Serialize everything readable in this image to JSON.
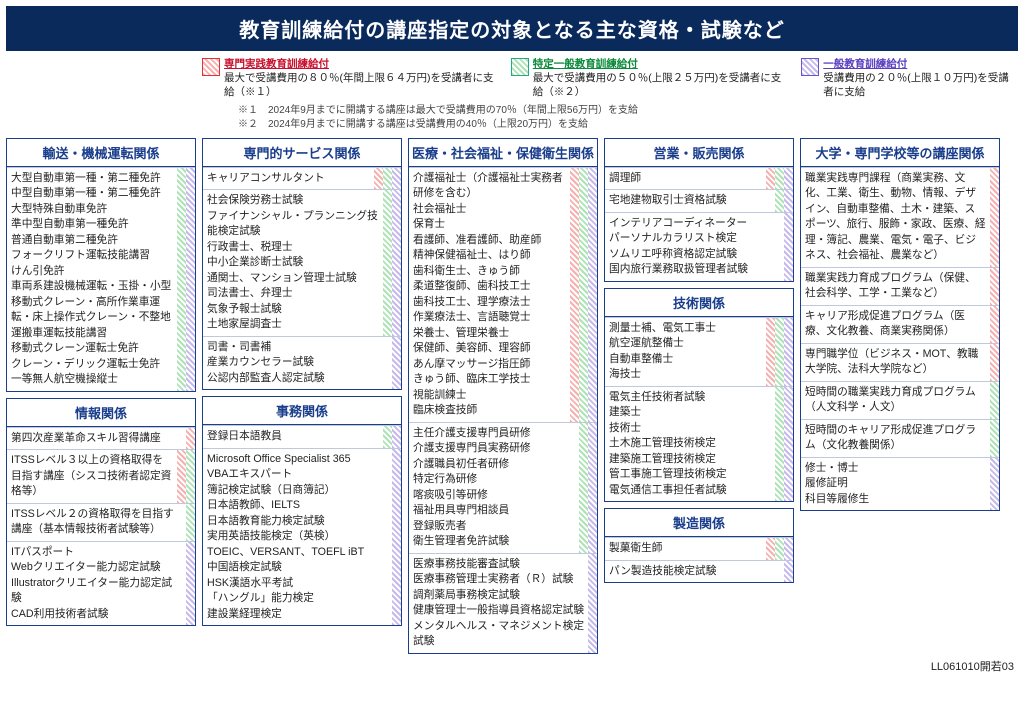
{
  "title": "教育訓練給付の講座指定の対象となる主な資格・試験など",
  "legend": {
    "red": {
      "title": "専門実践教育訓練給付",
      "desc": "最大で受講費用の８０％(年間上限６４万円)を受講者に支給（※１）"
    },
    "green": {
      "title": "特定一般教育訓練給付",
      "desc": "最大で受講費用の５０％(上限２５万円)を受講者に支給（※２）"
    },
    "purple": {
      "title": "一般教育訓練給付",
      "desc": "受講費用の２０％(上限１０万円)を受講者に支給"
    }
  },
  "footnotes": [
    "※１　2024年9月までに開講する講座は最大で受講費用の70％（年間上限56万円）を支給",
    "※２　2024年9月までに開講する講座は受講費用の40％（上限20万円）を支給"
  ],
  "doc_code": "LL061010開若03",
  "panels": {
    "transport": {
      "title": "輸送・機械運転関係",
      "groups": [
        {
          "stripes": [
            "green",
            "purple"
          ],
          "items": [
            "大型自動車第一種・第二種免許",
            "中型自動車第一種・第二種免許",
            "大型特殊自動車免許",
            "準中型自動車第一種免許",
            "普通自動車第二種免許",
            "フォークリフト運転技能講習",
            "けん引免許",
            "車両系建設機械運転・玉掛・小型移動式クレーン・高所作業車運転・床上操作式クレーン・不整地運搬車運転技能講習",
            "移動式クレーン運転士免許",
            "クレーン・デリック運転士免許",
            "一等無人航空機操縦士"
          ]
        }
      ]
    },
    "it": {
      "title": "情報関係",
      "groups": [
        {
          "stripes": [
            "red"
          ],
          "items": [
            "第四次産業革命スキル習得講座"
          ]
        },
        {
          "stripes": [
            "red",
            "green"
          ],
          "items": [
            "ITSSレベル３以上の資格取得を目指す講座（シスコ技術者認定資格等）"
          ]
        },
        {
          "stripes": [
            "green"
          ],
          "items": [
            "ITSSレベル２の資格取得を目指す講座（基本情報技術者試験等）"
          ]
        },
        {
          "stripes": [
            "purple"
          ],
          "items": [
            "ITパスポート",
            "Webクリエイター能力認定試験",
            "Illustratorクリエイター能力認定試験",
            "CAD利用技術者試験"
          ]
        }
      ]
    },
    "prof_service": {
      "title": "専門的サービス関係",
      "groups": [
        {
          "stripes": [
            "red",
            "green",
            "purple"
          ],
          "items": [
            "キャリアコンサルタント"
          ]
        },
        {
          "stripes": [
            "green",
            "purple"
          ],
          "items": [
            "社会保険労務士試験",
            "ファイナンシャル・プランニング技能検定試験",
            "行政書士、税理士",
            "中小企業診断士試験",
            "通関士、マンション管理士試験",
            "司法書士、弁理士",
            "気象予報士試験",
            "土地家屋調査士"
          ]
        },
        {
          "stripes": [
            "purple"
          ],
          "items": [
            "司書・司書補",
            "産業カウンセラー試験",
            "公認内部監査人認定試験"
          ]
        }
      ]
    },
    "office": {
      "title": "事務関係",
      "groups": [
        {
          "stripes": [
            "green",
            "purple"
          ],
          "items": [
            "登録日本語教員"
          ]
        },
        {
          "stripes": [
            "purple"
          ],
          "items": [
            "Microsoft Office Specialist 365",
            "VBAエキスパート",
            "簿記検定試験（日商簿記）",
            "日本語教師、IELTS",
            "日本語教育能力検定試験",
            "実用英語技能検定（英検）",
            "TOEIC、VERSANT、TOEFL iBT",
            "中国語検定試験",
            "HSK漢語水平考試",
            "「ハングル」能力検定",
            "建設業経理検定"
          ]
        }
      ]
    },
    "medical": {
      "title": "医療・社会福祉・保健衛生関係",
      "groups": [
        {
          "stripes": [
            "red",
            "green",
            "purple"
          ],
          "items": [
            "介護福祉士（介護福祉士実務者研修を含む）",
            "社会福祉士",
            "保育士",
            "看護師、准看護師、助産師",
            "精神保健福祉士、はり師",
            "歯科衛生士、きゅう師",
            "柔道整復師、歯科技工士",
            "歯科技工士、理学療法士",
            "作業療法士、言語聴覚士",
            "栄養士、管理栄養士",
            "保健師、美容師、理容師",
            "あん摩マッサージ指圧師",
            "きゅう師、臨床工学技士",
            "視能訓練士",
            "臨床検査技師"
          ]
        },
        {
          "stripes": [
            "green",
            "purple"
          ],
          "items": [
            "主任介護支援専門員研修",
            "介護支援専門員実務研修",
            "介護職員初任者研修",
            "特定行為研修",
            "喀痰吸引等研修",
            "福祉用具専門相談員",
            "登録販売者",
            "衛生管理者免許試験"
          ]
        },
        {
          "stripes": [
            "purple"
          ],
          "items": [
            "医療事務技能審査試験",
            "医療事務管理士実務者（Ｒ）試験",
            "調剤薬局事務検定試験",
            "健康管理士一般指導員資格認定試験",
            "メンタルヘルス・マネジメント検定試験"
          ]
        }
      ]
    },
    "sales": {
      "title": "営業・販売関係",
      "groups": [
        {
          "stripes": [
            "red",
            "green",
            "purple"
          ],
          "items": [
            "調理師"
          ]
        },
        {
          "stripes": [
            "green",
            "purple"
          ],
          "items": [
            "宅地建物取引士資格試験"
          ]
        },
        {
          "stripes": [
            "purple"
          ],
          "items": [
            "インテリアコーディネーター",
            "パーソナルカラリスト検定",
            "ソムリエ呼称資格認定試験",
            "国内旅行業務取扱管理者試験"
          ]
        }
      ]
    },
    "tech": {
      "title": "技術関係",
      "groups": [
        {
          "stripes": [
            "red",
            "green",
            "purple"
          ],
          "items": [
            "測量士補、電気工事士",
            "航空運航整備士",
            "自動車整備士",
            "海技士"
          ]
        },
        {
          "stripes": [
            "green",
            "purple"
          ],
          "items": [
            "電気主任技術者試験",
            "建築士",
            "技術士",
            "土木施工管理技術検定",
            "建築施工管理技術検定",
            "管工事施工管理技術検定",
            "電気通信工事担任者試験"
          ]
        }
      ]
    },
    "mfg": {
      "title": "製造関係",
      "groups": [
        {
          "stripes": [
            "red",
            "green",
            "purple"
          ],
          "items": [
            "製菓衛生師"
          ]
        },
        {
          "stripes": [
            "purple"
          ],
          "items": [
            "パン製造技能検定試験"
          ]
        }
      ]
    },
    "univ": {
      "title": "大学・専門学校等の講座関係",
      "groups": [
        {
          "stripes": [
            "red"
          ],
          "items": [
            "職業実践専門課程（商業実務、文化、工業、衛生、動物、情報、デザイン、自動車整備、土木・建築、スポーツ、旅行、服飾・家政、医療、経理・簿記、農業、電気・電子、ビジネス、社会福祉、農業など）"
          ]
        },
        {
          "stripes": [
            "red"
          ],
          "items": [
            "職業実践力育成プログラム（保健、社会科学、工学・工業など）"
          ]
        },
        {
          "stripes": [
            "red"
          ],
          "items": [
            "キャリア形成促進プログラム（医療、文化教養、商業実務関係）"
          ]
        },
        {
          "stripes": [
            "red"
          ],
          "items": [
            "専門職学位（ビジネス・MOT、教職大学院、法科大学院など）"
          ]
        },
        {
          "stripes": [
            "green"
          ],
          "items": [
            "短時間の職業実践力育成プログラム（人文科学・人文）"
          ]
        },
        {
          "stripes": [
            "green"
          ],
          "items": [
            "短時間のキャリア形成促進プログラム（文化教養関係）"
          ]
        },
        {
          "stripes": [
            "purple"
          ],
          "items": [
            "修士・博士",
            "履修証明",
            "科目等履修生"
          ]
        }
      ]
    }
  }
}
